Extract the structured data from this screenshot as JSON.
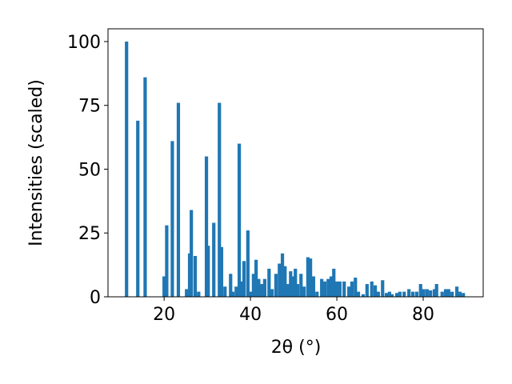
{
  "chart_data": {
    "type": "bar",
    "x_label": "2θ (°)",
    "y_label": "Intensities (scaled)",
    "color": "#1f77b4",
    "xlim": [
      7.0,
      93.9
    ],
    "ylim": [
      0,
      105
    ],
    "xticks": [
      20,
      40,
      60,
      80
    ],
    "yticks": [
      0,
      25,
      50,
      75,
      100
    ],
    "x": [
      11.3,
      13.9,
      15.6,
      20.0,
      20.6,
      21.9,
      23.3,
      25.2,
      25.9,
      26.3,
      27.2,
      28.0,
      29.8,
      30.2,
      31.5,
      32.8,
      33.3,
      34.1,
      35.4,
      35.9,
      36.7,
      37.4,
      38.0,
      38.5,
      39.4,
      40.0,
      40.7,
      41.3,
      41.9,
      42.6,
      43.3,
      44.3,
      45.0,
      45.9,
      46.7,
      47.4,
      48.0,
      48.7,
      49.3,
      49.8,
      50.4,
      50.9,
      51.7,
      52.4,
      53.3,
      53.9,
      54.6,
      55.4,
      56.5,
      57.2,
      58.0,
      58.7,
      59.3,
      60.0,
      60.7,
      61.7,
      62.8,
      63.5,
      64.3,
      65.0,
      66.1,
      67.0,
      68.1,
      68.9,
      69.6,
      70.6,
      71.5,
      72.2,
      72.8,
      73.9,
      74.6,
      75.6,
      76.7,
      77.6,
      78.5,
      79.4,
      80.1,
      80.9,
      81.7,
      82.6,
      83.1,
      84.4,
      85.2,
      85.9,
      86.7,
      87.8,
      88.5,
      89.3
    ],
    "values": [
      100,
      69,
      86,
      8,
      28,
      61,
      76,
      3,
      17,
      34,
      16,
      2,
      55,
      20,
      29,
      76,
      19.5,
      4,
      9,
      2,
      4,
      60,
      6,
      14,
      26,
      2,
      9,
      14.5,
      7,
      5,
      7,
      11,
      3,
      9,
      13,
      17,
      12,
      5,
      10,
      8,
      11,
      5,
      9,
      4,
      15.5,
      15,
      8,
      2,
      7,
      6,
      7,
      8,
      11,
      6,
      6,
      6,
      4,
      6,
      7.5,
      2,
      1,
      5,
      6,
      4.5,
      2,
      6.5,
      1.5,
      2,
      1,
      1.5,
      2,
      2,
      3,
      2,
      2,
      5,
      3,
      3,
      2.5,
      3,
      5,
      2,
      3,
      3,
      2,
      4,
      2,
      1.5
    ]
  }
}
